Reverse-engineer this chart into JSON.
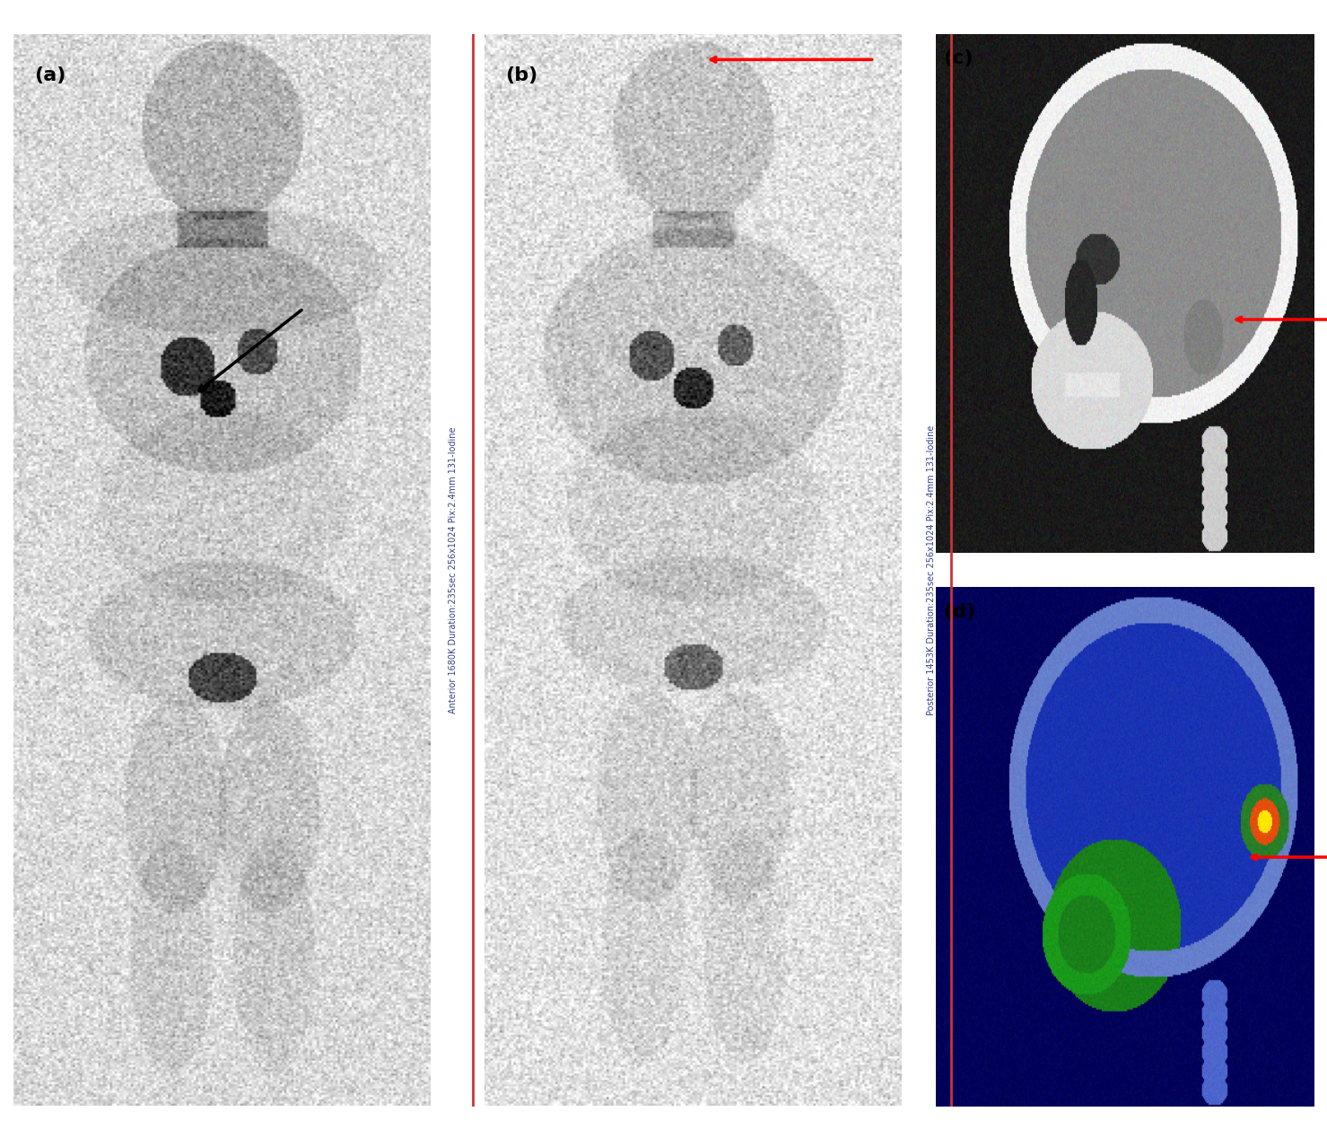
{
  "fig_width": 14.79,
  "fig_height": 12.58,
  "bg_color": "#ffffff",
  "panel_a_label": "(a)",
  "panel_b_label": "(b)",
  "panel_c_label": "(c)",
  "panel_d_label": "(d)",
  "separator1_text": "Anterior 1680K Duration:235sec 256x1024 Pix:2.4mm 131-Iodine",
  "separator2_text": "Posterior 1453K Duration:235sec 256x1024 Pix:2.4mm 131-Iodine",
  "separator_color": "#8899bb",
  "separator_line_color": "#cc3333",
  "arrow_color_black": "#000000",
  "arrow_color_red": "#cc0000",
  "label_fontsize": 16,
  "sep_text_fontsize": 7
}
